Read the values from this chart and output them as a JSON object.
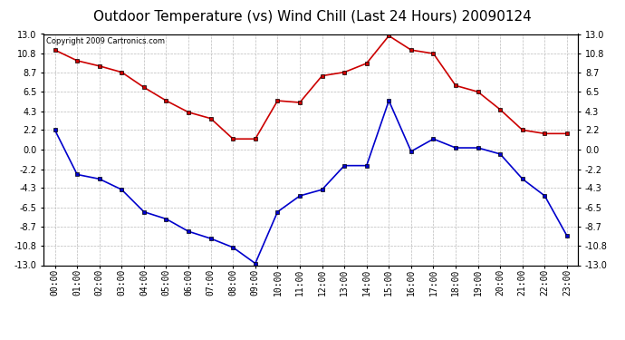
{
  "title": "Outdoor Temperature (vs) Wind Chill (Last 24 Hours) 20090124",
  "copyright": "Copyright 2009 Cartronics.com",
  "x_labels": [
    "00:00",
    "01:00",
    "02:00",
    "03:00",
    "04:00",
    "05:00",
    "06:00",
    "07:00",
    "08:00",
    "09:00",
    "10:00",
    "11:00",
    "12:00",
    "13:00",
    "14:00",
    "15:00",
    "16:00",
    "17:00",
    "18:00",
    "19:00",
    "20:00",
    "21:00",
    "22:00",
    "23:00"
  ],
  "temp_red": [
    11.2,
    10.0,
    9.4,
    8.7,
    7.0,
    5.5,
    4.2,
    3.5,
    1.2,
    1.2,
    5.5,
    5.3,
    8.3,
    8.7,
    9.7,
    12.8,
    11.2,
    10.8,
    7.2,
    6.5,
    4.5,
    2.2,
    1.8,
    1.8
  ],
  "wind_blue": [
    2.2,
    -2.8,
    -3.3,
    -4.5,
    -7.0,
    -7.8,
    -9.2,
    -10.0,
    -11.0,
    -12.8,
    -7.0,
    -5.2,
    -4.5,
    -1.8,
    -1.8,
    5.5,
    -0.2,
    1.2,
    0.2,
    0.2,
    -0.5,
    -3.3,
    -5.2,
    -9.7
  ],
  "ylim": [
    -13.0,
    13.0
  ],
  "yticks": [
    -13.0,
    -10.8,
    -8.7,
    -6.5,
    -4.3,
    -2.2,
    0.0,
    2.2,
    4.3,
    6.5,
    8.7,
    10.8,
    13.0
  ],
  "red_color": "#cc0000",
  "blue_color": "#0000cc",
  "grid_color": "#bbbbbb",
  "bg_color": "#ffffff",
  "title_fontsize": 11,
  "copyright_fontsize": 6
}
